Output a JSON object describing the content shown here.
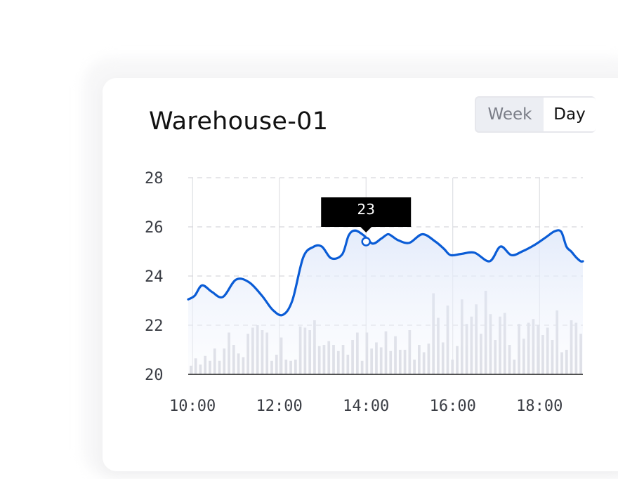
{
  "header": {
    "title": "Warehouse-01",
    "toggle": {
      "week_label": "Week",
      "day_label": "Day",
      "selected": "Day"
    }
  },
  "colors": {
    "line": "#0a5cd6",
    "bars": "#d3d4dc",
    "tooltip_bg": "#000000"
  },
  "chart_data": {
    "type": "line",
    "title": "Warehouse-01",
    "xlabel": "",
    "ylabel": "",
    "x_range": [
      9.9,
      19.0
    ],
    "ylim": [
      20,
      28
    ],
    "y_ticks": [
      20,
      22,
      24,
      26,
      28
    ],
    "x_ticks": [
      "10:00",
      "12:00",
      "14:00",
      "16:00",
      "18:00"
    ],
    "grid": {
      "horizontal": "dashed",
      "vertical": true
    },
    "series": [
      {
        "kind": "line",
        "x": [
          9.9,
          10.05,
          10.22,
          10.45,
          10.7,
          11.0,
          11.3,
          11.6,
          11.85,
          12.08,
          12.3,
          12.55,
          12.78,
          12.98,
          13.2,
          13.45,
          13.6,
          13.75,
          13.95,
          14.15,
          14.35,
          14.5,
          14.6,
          14.75,
          15.0,
          15.3,
          15.6,
          15.8,
          15.95,
          16.2,
          16.5,
          16.85,
          17.1,
          17.35,
          17.6,
          17.9,
          18.15,
          18.35,
          18.5,
          18.62,
          18.73,
          18.85,
          18.95,
          19.0
        ],
        "y": [
          23.05,
          23.2,
          23.62,
          23.35,
          23.15,
          23.85,
          23.75,
          23.2,
          22.62,
          22.42,
          23.0,
          24.75,
          25.18,
          25.2,
          24.72,
          24.88,
          25.65,
          25.85,
          25.65,
          25.32,
          25.52,
          25.7,
          25.62,
          25.45,
          25.35,
          25.7,
          25.4,
          25.1,
          24.85,
          24.9,
          24.95,
          24.6,
          25.2,
          24.85,
          25.0,
          25.28,
          25.58,
          25.82,
          25.8,
          25.2,
          25.0,
          24.75,
          24.6,
          24.6
        ]
      },
      {
        "kind": "bars",
        "values": [
          20.35,
          20.65,
          20.4,
          20.75,
          20.55,
          21.05,
          20.55,
          21.05,
          21.7,
          21.2,
          20.85,
          20.7,
          21.65,
          21.9,
          22.0,
          21.8,
          21.7,
          20.55,
          20.8,
          21.5,
          20.6,
          20.55,
          20.6,
          21.95,
          21.9,
          21.8,
          22.2,
          21.15,
          21.2,
          21.35,
          21.2,
          20.95,
          21.2,
          20.8,
          21.4,
          21.7,
          20.55,
          21.7,
          21.05,
          21.3,
          21.1,
          21.75,
          20.95,
          21.55,
          21.0,
          21.0,
          21.8,
          20.6,
          21.2,
          20.9,
          21.25,
          23.3,
          22.3,
          21.3,
          22.8,
          20.6,
          21.15,
          23.05,
          22.05,
          22.35,
          22.85,
          21.65,
          23.4,
          22.45,
          21.4,
          22.35,
          22.5,
          21.2,
          20.6,
          22.05,
          21.45,
          22.1,
          22.25,
          22.0,
          21.6,
          21.9,
          21.4,
          22.6,
          20.9,
          21.0,
          22.2,
          22.1,
          21.65
        ]
      }
    ],
    "tooltip": {
      "x": 14.0,
      "y": 25.4,
      "label": "23"
    }
  }
}
